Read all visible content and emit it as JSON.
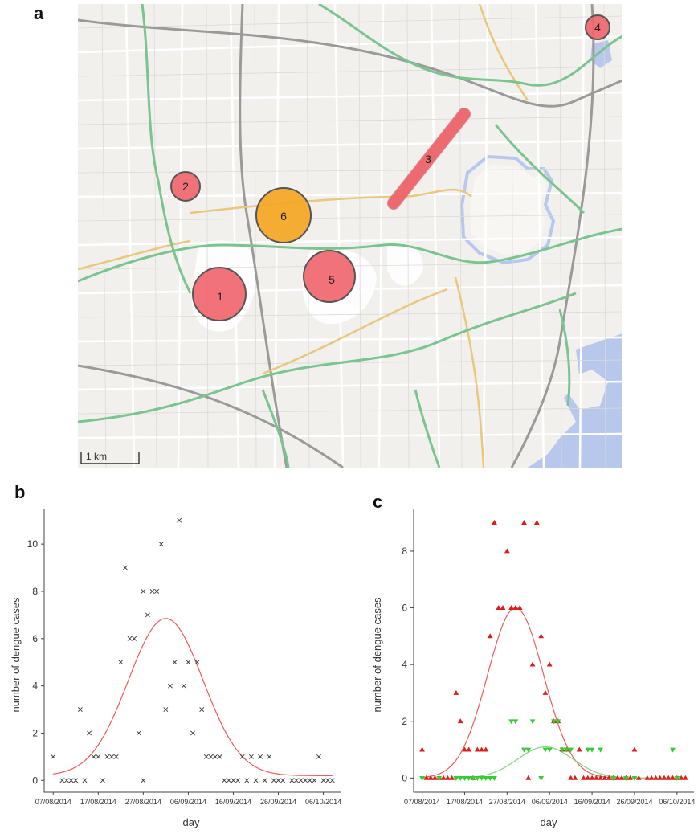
{
  "panels": {
    "a": "a",
    "b": "b",
    "c": "c"
  },
  "map": {
    "scale_label": "1 km",
    "sites": [
      {
        "label": "1",
        "color": "#f0666d"
      },
      {
        "label": "2",
        "color": "#f0666d"
      },
      {
        "label": "3",
        "color": "#f0666d"
      },
      {
        "label": "4",
        "color": "#f0666d"
      },
      {
        "label": "5",
        "color": "#f0666d"
      },
      {
        "label": "6",
        "color": "#f5a623"
      }
    ],
    "colors": {
      "land": "#f1f0ed",
      "water": "#b8c8ec",
      "major_road": "#7ac48f",
      "secondary_road": "#e9c77d",
      "street": "#ffffff"
    }
  },
  "chart_data": [
    {
      "type": "scatter",
      "panel": "b",
      "xlabel": "day",
      "ylabel": "number of dengue cases",
      "x_ticks": [
        "07/08/2014",
        "17/08/2014",
        "27/08/2014",
        "06/09/2014",
        "16/09/2014",
        "26/09/2014",
        "06/10/2014"
      ],
      "x_range": [
        "05/08/2014",
        "10/10/2014"
      ],
      "ylim": [
        -0.5,
        11.5
      ],
      "y_ticks": [
        0,
        2,
        4,
        6,
        8,
        10
      ],
      "marker": "x",
      "series": [
        {
          "color": "#333333",
          "points": [
            [
              "07/08/2014",
              1
            ],
            [
              "09/08/2014",
              0
            ],
            [
              "10/08/2014",
              0
            ],
            [
              "11/08/2014",
              0
            ],
            [
              "12/08/2014",
              0
            ],
            [
              "13/08/2014",
              3
            ],
            [
              "14/08/2014",
              0
            ],
            [
              "15/08/2014",
              2
            ],
            [
              "16/08/2014",
              1
            ],
            [
              "17/08/2014",
              1
            ],
            [
              "18/08/2014",
              0
            ],
            [
              "19/08/2014",
              1
            ],
            [
              "20/08/2014",
              1
            ],
            [
              "21/08/2014",
              1
            ],
            [
              "22/08/2014",
              5
            ],
            [
              "23/08/2014",
              9
            ],
            [
              "24/08/2014",
              6
            ],
            [
              "25/08/2014",
              6
            ],
            [
              "26/08/2014",
              2
            ],
            [
              "27/08/2014",
              8
            ],
            [
              "27/08/2014",
              0
            ],
            [
              "28/08/2014",
              7
            ],
            [
              "29/08/2014",
              8
            ],
            [
              "30/08/2014",
              8
            ],
            [
              "31/08/2014",
              10
            ],
            [
              "01/09/2014",
              3
            ],
            [
              "02/09/2014",
              4
            ],
            [
              "03/09/2014",
              5
            ],
            [
              "04/09/2014",
              11
            ],
            [
              "05/09/2014",
              4
            ],
            [
              "06/09/2014",
              5
            ],
            [
              "07/09/2014",
              2
            ],
            [
              "08/09/2014",
              5
            ],
            [
              "09/09/2014",
              3
            ],
            [
              "10/09/2014",
              1
            ],
            [
              "11/09/2014",
              1
            ],
            [
              "12/09/2014",
              1
            ],
            [
              "13/09/2014",
              1
            ],
            [
              "14/09/2014",
              0
            ],
            [
              "15/09/2014",
              0
            ],
            [
              "16/09/2014",
              0
            ],
            [
              "17/09/2014",
              0
            ],
            [
              "18/09/2014",
              1
            ],
            [
              "19/09/2014",
              0
            ],
            [
              "20/09/2014",
              1
            ],
            [
              "21/09/2014",
              0
            ],
            [
              "22/09/2014",
              1
            ],
            [
              "23/09/2014",
              0
            ],
            [
              "24/09/2014",
              1
            ],
            [
              "25/09/2014",
              0
            ],
            [
              "26/09/2014",
              0
            ],
            [
              "27/09/2014",
              0
            ],
            [
              "29/09/2014",
              0
            ],
            [
              "30/09/2014",
              0
            ],
            [
              "01/10/2014",
              0
            ],
            [
              "02/10/2014",
              0
            ],
            [
              "03/10/2014",
              0
            ],
            [
              "04/10/2014",
              0
            ],
            [
              "05/10/2014",
              1
            ],
            [
              "06/10/2014",
              0
            ],
            [
              "07/10/2014",
              0
            ],
            [
              "08/10/2014",
              0
            ]
          ]
        }
      ],
      "fit": {
        "color": "#f05a5a",
        "peak": 6.85,
        "peak_date": "01/09/2014",
        "sd_days": 8.3,
        "baseline": 0.2
      }
    },
    {
      "type": "scatter",
      "panel": "c",
      "xlabel": "day",
      "ylabel": "number of dengue cases",
      "x_ticks": [
        "07/08/2014",
        "17/08/2014",
        "27/08/2014",
        "06/09/2014",
        "16/09/2014",
        "26/09/2014",
        "06/10/2014"
      ],
      "x_range": [
        "05/08/2014",
        "10/10/2014"
      ],
      "ylim": [
        -0.5,
        9.5
      ],
      "y_ticks": [
        0,
        2,
        4,
        6,
        8
      ],
      "series": [
        {
          "marker": "triangle-up",
          "color": "#dd1c1c",
          "points": [
            [
              "07/08/2014",
              1
            ],
            [
              "08/08/2014",
              0
            ],
            [
              "09/08/2014",
              0
            ],
            [
              "10/08/2014",
              0
            ],
            [
              "11/08/2014",
              0
            ],
            [
              "12/08/2014",
              0
            ],
            [
              "13/08/2014",
              0
            ],
            [
              "14/08/2014",
              0
            ],
            [
              "15/08/2014",
              3
            ],
            [
              "16/08/2014",
              2
            ],
            [
              "17/08/2014",
              1
            ],
            [
              "18/08/2014",
              1
            ],
            [
              "19/08/2014",
              0
            ],
            [
              "20/08/2014",
              1
            ],
            [
              "21/08/2014",
              1
            ],
            [
              "22/08/2014",
              1
            ],
            [
              "23/08/2014",
              5
            ],
            [
              "24/08/2014",
              9
            ],
            [
              "25/08/2014",
              6
            ],
            [
              "26/08/2014",
              6
            ],
            [
              "27/08/2014",
              8
            ],
            [
              "28/08/2014",
              6
            ],
            [
              "29/08/2014",
              6
            ],
            [
              "30/08/2014",
              6
            ],
            [
              "31/08/2014",
              9
            ],
            [
              "01/09/2014",
              0
            ],
            [
              "02/09/2014",
              4
            ],
            [
              "03/09/2014",
              9
            ],
            [
              "04/09/2014",
              5
            ],
            [
              "05/09/2014",
              3
            ],
            [
              "06/09/2014",
              4
            ],
            [
              "07/09/2014",
              2
            ],
            [
              "08/09/2014",
              2
            ],
            [
              "09/09/2014",
              1
            ],
            [
              "10/09/2014",
              1
            ],
            [
              "11/09/2014",
              0
            ],
            [
              "12/09/2014",
              0
            ],
            [
              "13/09/2014",
              1
            ],
            [
              "14/09/2014",
              0
            ],
            [
              "15/09/2014",
              0
            ],
            [
              "16/09/2014",
              0
            ],
            [
              "17/09/2014",
              0
            ],
            [
              "18/09/2014",
              0
            ],
            [
              "19/09/2014",
              0
            ],
            [
              "20/09/2014",
              0
            ],
            [
              "21/09/2014",
              0
            ],
            [
              "22/09/2014",
              0
            ],
            [
              "23/09/2014",
              0
            ],
            [
              "24/09/2014",
              0
            ],
            [
              "25/09/2014",
              0
            ],
            [
              "26/09/2014",
              1
            ],
            [
              "27/09/2014",
              0
            ],
            [
              "29/09/2014",
              0
            ],
            [
              "30/09/2014",
              0
            ],
            [
              "01/10/2014",
              0
            ],
            [
              "02/10/2014",
              0
            ],
            [
              "03/10/2014",
              0
            ],
            [
              "04/10/2014",
              0
            ],
            [
              "05/10/2014",
              0
            ],
            [
              "06/10/2014",
              0
            ],
            [
              "07/10/2014",
              0
            ],
            [
              "08/10/2014",
              0
            ]
          ]
        },
        {
          "marker": "triangle-down",
          "color": "#33cc33",
          "points": [
            [
              "07/08/2014",
              0
            ],
            [
              "11/08/2014",
              0
            ],
            [
              "15/08/2014",
              0
            ],
            [
              "16/08/2014",
              0
            ],
            [
              "17/08/2014",
              0
            ],
            [
              "18/08/2014",
              0
            ],
            [
              "19/08/2014",
              0
            ],
            [
              "20/08/2014",
              0
            ],
            [
              "21/08/2014",
              0
            ],
            [
              "22/08/2014",
              0
            ],
            [
              "23/08/2014",
              0
            ],
            [
              "24/08/2014",
              0
            ],
            [
              "28/08/2014",
              2
            ],
            [
              "29/08/2014",
              2
            ],
            [
              "31/08/2014",
              1
            ],
            [
              "01/09/2014",
              1
            ],
            [
              "02/09/2014",
              2
            ],
            [
              "04/09/2014",
              0
            ],
            [
              "05/09/2014",
              1
            ],
            [
              "06/09/2014",
              1
            ],
            [
              "07/09/2014",
              2
            ],
            [
              "08/09/2014",
              2
            ],
            [
              "09/09/2014",
              1
            ],
            [
              "10/09/2014",
              1
            ],
            [
              "11/09/2014",
              1
            ],
            [
              "15/09/2014",
              1
            ],
            [
              "16/09/2014",
              1
            ],
            [
              "18/09/2014",
              1
            ],
            [
              "21/09/2014",
              0
            ],
            [
              "24/09/2014",
              0
            ],
            [
              "26/09/2014",
              0
            ],
            [
              "05/10/2014",
              1
            ],
            [
              "06/10/2014",
              0
            ]
          ]
        }
      ],
      "fits": [
        {
          "color": "#f05a5a",
          "peak": 6.0,
          "peak_date": "29/08/2014",
          "sd_days": 6.6,
          "baseline": 0.0
        },
        {
          "color": "#7fd67f",
          "peak": 1.1,
          "peak_date": "05/09/2014",
          "sd_days": 6.5,
          "baseline": 0.0
        }
      ]
    }
  ]
}
